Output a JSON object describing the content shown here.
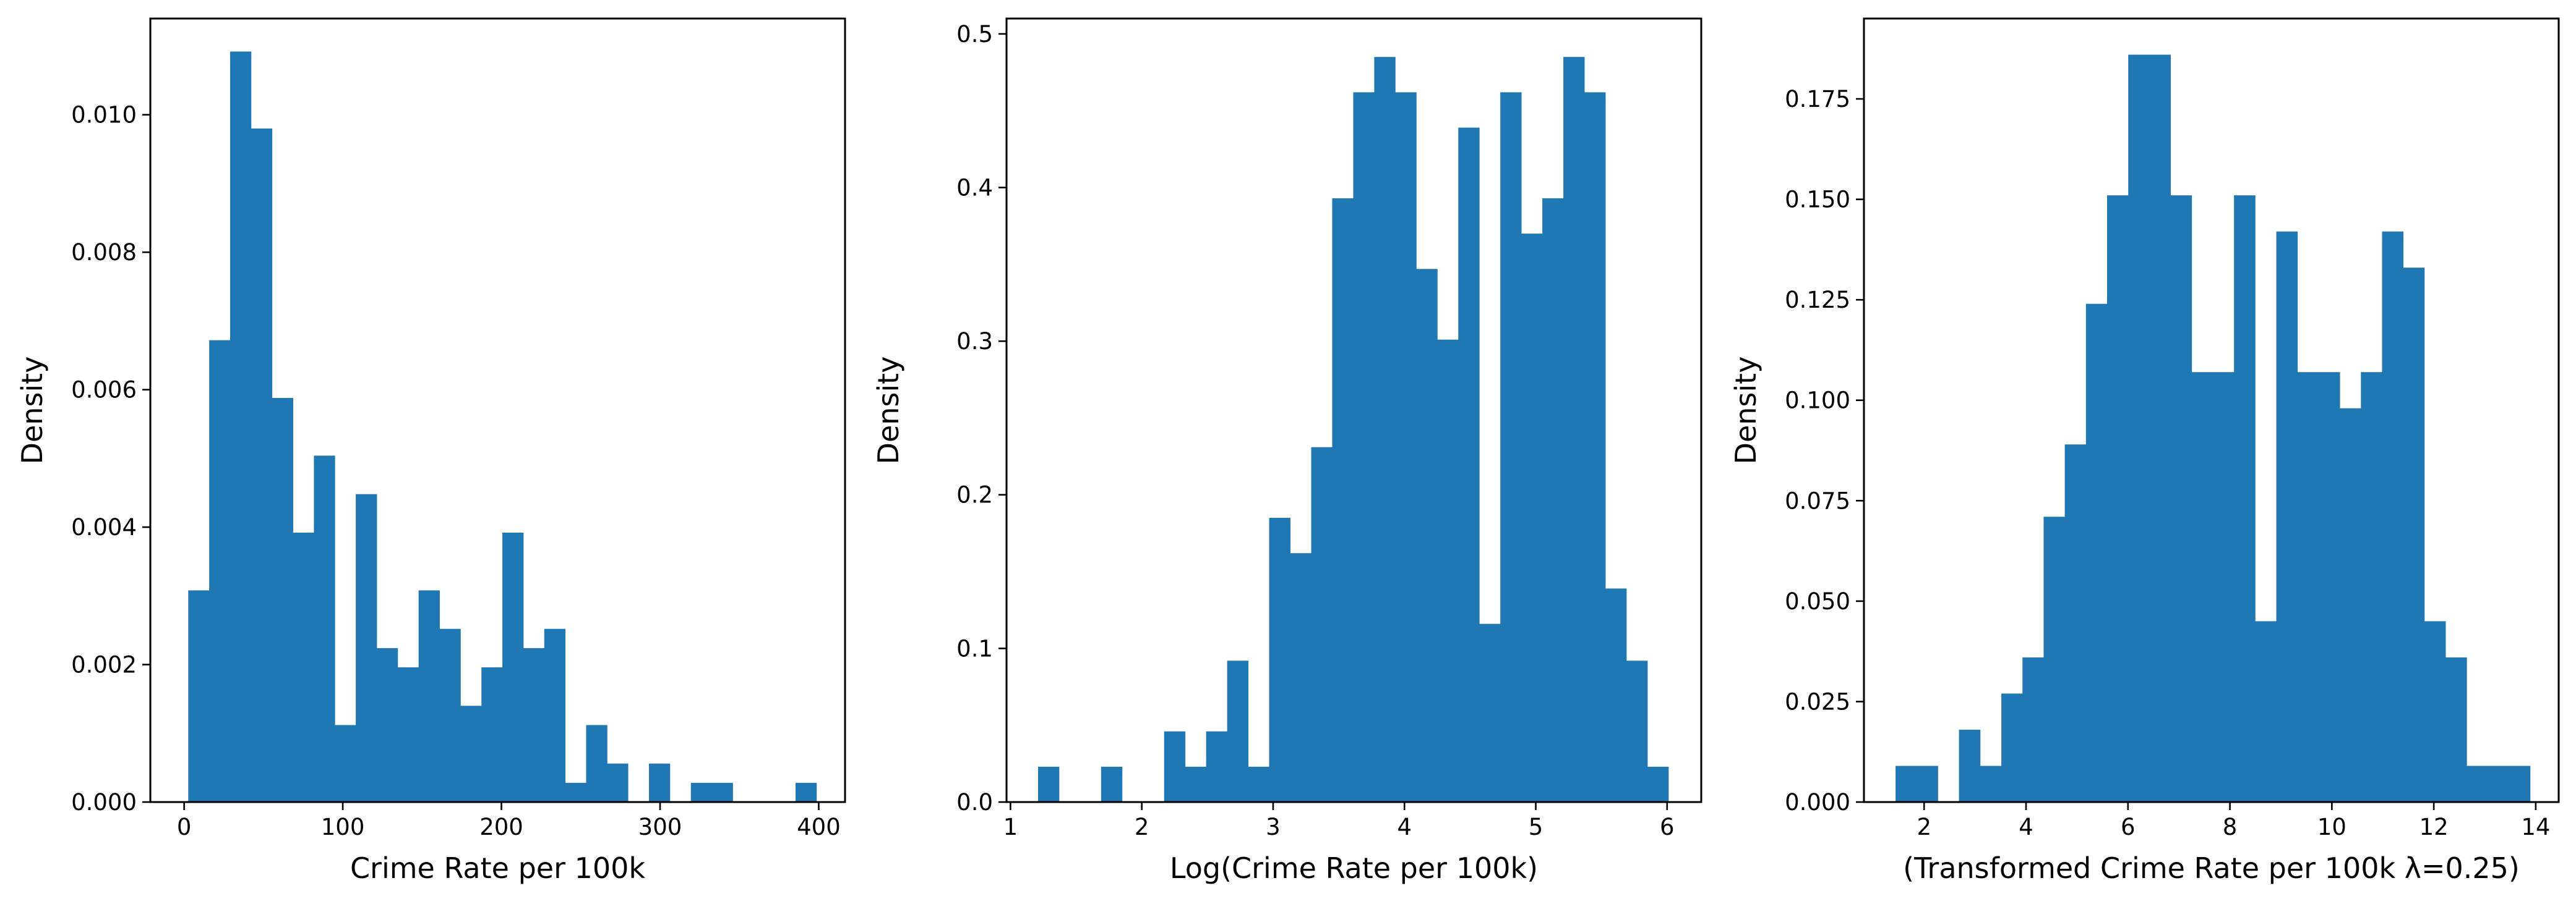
{
  "bar_color": "#1f77b4",
  "chart_data": [
    {
      "type": "histogram",
      "xlabel": "Crime Rate per 100k",
      "ylabel": "Density",
      "xlim": [
        -21.3,
        416.6
      ],
      "ylim": [
        0,
        0.0114
      ],
      "xticks": [
        0,
        100,
        200,
        300,
        400
      ],
      "xtick_labels": [
        "0",
        "100",
        "200",
        "300",
        "400"
      ],
      "yticks": [
        0,
        0.002,
        0.004,
        0.006,
        0.008,
        0.01
      ],
      "ytick_labels": [
        "0.000",
        "0.002",
        "0.004",
        "0.006",
        "0.008",
        "0.010"
      ],
      "bin_edges": [
        2.6,
        15.8,
        29.0,
        42.2,
        55.4,
        68.6,
        81.8,
        95.0,
        108.2,
        121.4,
        134.6,
        147.8,
        161.0,
        174.2,
        187.4,
        200.6,
        213.8,
        227.0,
        240.2,
        253.4,
        266.6,
        279.8,
        293.0,
        306.2,
        319.4,
        332.6,
        345.8,
        359.0,
        372.2,
        385.4,
        398.6
      ],
      "values": [
        0.00308,
        0.00672,
        0.01092,
        0.0098,
        0.00588,
        0.00392,
        0.00504,
        0.00112,
        0.00448,
        0.00224,
        0.00196,
        0.00308,
        0.00252,
        0.0014,
        0.00196,
        0.00392,
        0.00224,
        0.00252,
        0.00028,
        0.00112,
        0.00056,
        0,
        0.00056,
        0,
        0.00028,
        0.00028,
        0,
        0,
        0,
        0.00028
      ]
    },
    {
      "type": "histogram",
      "xlabel": "Log(Crime Rate per 100k)",
      "ylabel": "Density",
      "xlim": [
        0.97,
        6.26
      ],
      "ylim": [
        0,
        0.51
      ],
      "xticks": [
        1,
        2,
        3,
        4,
        5,
        6
      ],
      "xtick_labels": [
        "1",
        "2",
        "3",
        "4",
        "5",
        "6"
      ],
      "yticks": [
        0,
        0.1,
        0.2,
        0.3,
        0.4,
        0.5
      ],
      "ytick_labels": [
        "0.0",
        "0.1",
        "0.2",
        "0.3",
        "0.4",
        "0.5"
      ],
      "bin_edges": [
        1.21,
        1.37,
        1.53,
        1.69,
        1.85,
        2.01,
        2.17,
        2.33,
        2.49,
        2.65,
        2.81,
        2.97,
        3.13,
        3.29,
        3.45,
        3.61,
        3.77,
        3.93,
        4.09,
        4.25,
        4.41,
        4.57,
        4.73,
        4.89,
        5.05,
        5.21,
        5.37,
        5.53,
        5.69,
        5.85,
        6.01
      ],
      "values": [
        0.023,
        0,
        0,
        0.023,
        0,
        0,
        0.046,
        0.023,
        0.046,
        0.092,
        0.023,
        0.185,
        0.162,
        0.231,
        0.393,
        0.462,
        0.485,
        0.462,
        0.347,
        0.301,
        0.439,
        0.116,
        0.462,
        0.37,
        0.393,
        0.485,
        0.462,
        0.139,
        0.092,
        0.023
      ]
    },
    {
      "type": "histogram",
      "xlabel": "(Transformed Crime Rate per 100k λ=0.25)",
      "ylabel": "Density",
      "xlim": [
        0.82,
        14.45
      ],
      "ylim": [
        0,
        0.195
      ],
      "xticks": [
        2,
        4,
        6,
        8,
        10,
        12,
        14
      ],
      "xtick_labels": [
        "2",
        "4",
        "6",
        "8",
        "10",
        "12",
        "14"
      ],
      "yticks": [
        0,
        0.025,
        0.05,
        0.075,
        0.1,
        0.125,
        0.15,
        0.175
      ],
      "ytick_labels": [
        "0.000",
        "0.025",
        "0.050",
        "0.075",
        "0.100",
        "0.125",
        "0.150",
        "0.175"
      ],
      "bin_edges": [
        1.44,
        1.855,
        2.27,
        2.685,
        3.1,
        3.515,
        3.93,
        4.345,
        4.76,
        5.175,
        5.59,
        6.005,
        6.42,
        6.835,
        7.25,
        7.665,
        8.08,
        8.495,
        8.91,
        9.325,
        9.74,
        10.155,
        10.57,
        10.985,
        11.4,
        11.815,
        12.23,
        12.645,
        13.06,
        13.475,
        13.89
      ],
      "values": [
        0.009,
        0.009,
        0,
        0.018,
        0.009,
        0.027,
        0.036,
        0.071,
        0.089,
        0.124,
        0.151,
        0.186,
        0.186,
        0.151,
        0.107,
        0.107,
        0.151,
        0.045,
        0.142,
        0.107,
        0.107,
        0.098,
        0.107,
        0.142,
        0.133,
        0.045,
        0.036,
        0.009,
        0.009,
        0.009
      ]
    }
  ]
}
